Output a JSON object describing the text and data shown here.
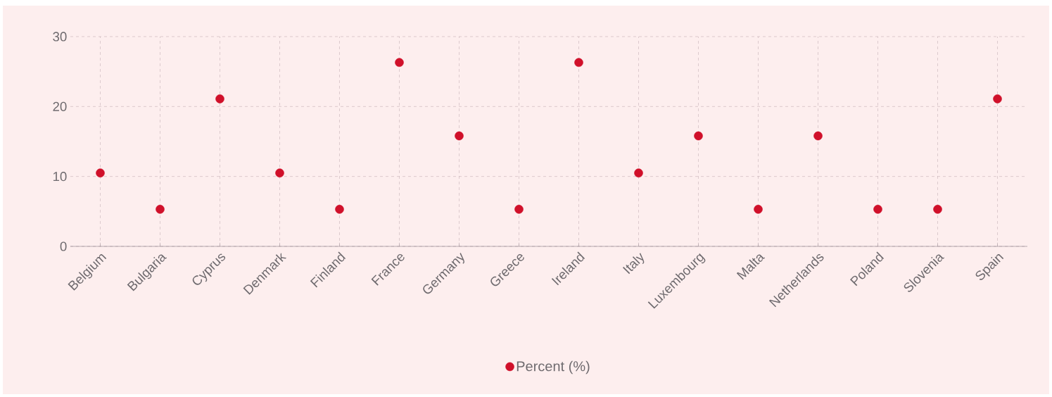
{
  "chart_data": {
    "type": "scatter",
    "categories": [
      "Belgium",
      "Bulgaria",
      "Cyprus",
      "Denmark",
      "Finland",
      "France",
      "Germany",
      "Greece",
      "Ireland",
      "Italy",
      "Luxembourg",
      "Malta",
      "Netherlands",
      "Poland",
      "Slovenia",
      "Spain"
    ],
    "series": [
      {
        "name": "Percent (%)",
        "color": "#d0102a",
        "values": [
          10.5,
          5.3,
          21.1,
          10.5,
          5.3,
          26.3,
          15.8,
          5.3,
          26.3,
          10.5,
          15.8,
          5.3,
          15.8,
          5.3,
          5.3,
          21.1
        ]
      }
    ],
    "ylim": [
      0,
      30
    ],
    "yticks": [
      0,
      10,
      20,
      30
    ],
    "grid": true,
    "legend": "bottom",
    "marker": "circle"
  }
}
